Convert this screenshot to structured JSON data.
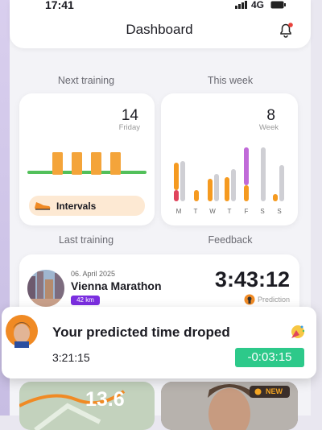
{
  "status_bar": {
    "time": "17:41",
    "network": "4G"
  },
  "header": {
    "title": "Dashboard"
  },
  "next_training": {
    "label": "Next training",
    "day_number": "14",
    "day_name": "Friday",
    "workout": "Intervals"
  },
  "this_week": {
    "label": "This week",
    "week_number": "8",
    "week_label": "Week",
    "days": [
      "M",
      "T",
      "W",
      "T",
      "F",
      "S",
      "S"
    ]
  },
  "last_training": {
    "label": "Last training",
    "date": "06. April 2025",
    "name": "Vienna Marathon",
    "distance": "42 km",
    "time": "3:43:12",
    "prediction_label": "Prediction"
  },
  "feedback": {
    "label": "Feedback"
  },
  "notification": {
    "title": "Your predicted time droped",
    "predicted_time": "3:21:15",
    "change": "-0:03:15"
  },
  "bottom_cards": {
    "distance": "13.6",
    "badge": "NEW"
  }
}
